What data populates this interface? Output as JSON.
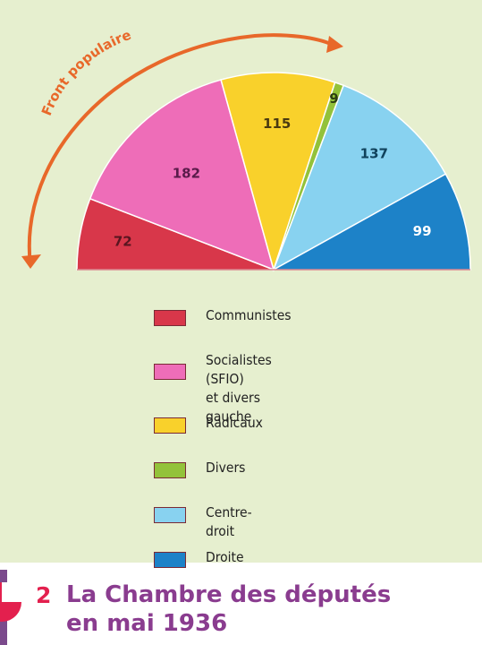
{
  "chart_data": {
    "type": "pie",
    "variant": "hemicycle",
    "annotation": "Front populaire",
    "slices": [
      {
        "label": "Communistes",
        "value": 72,
        "color": "#d8374a"
      },
      {
        "label": "Socialistes (SFIO)\net divers gauche",
        "value": 182,
        "color": "#ee6db8"
      },
      {
        "label": "Radicaux",
        "value": 115,
        "color": "#f9d12b"
      },
      {
        "label": "Divers",
        "value": 9,
        "color": "#93c23a"
      },
      {
        "label": "Centre-droit",
        "value": 137,
        "color": "#88d2f0"
      },
      {
        "label": "Droite",
        "value": 99,
        "color": "#1d82c8"
      }
    ],
    "arrow_color": "#e8682a"
  },
  "caption": {
    "number": "2",
    "title": "La Chambre des députés\nen mai 1936"
  }
}
